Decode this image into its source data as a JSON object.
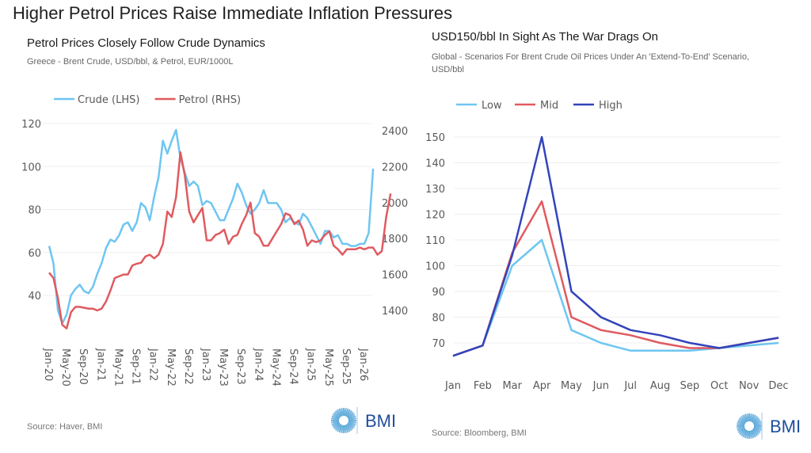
{
  "page_title": "Higher Petrol Prices Raise Immediate Inflation Pressures",
  "brand": {
    "name": "BMI",
    "color": "#1f4e9c",
    "logo_color": "#5aa9db"
  },
  "chart_data": [
    {
      "type": "line",
      "title": "Petrol Prices Closely Follow Crude Dynamics",
      "subtitle": "Greece - Brent Crude, USD/bbl, & Petrol, EUR/1000L",
      "source": "Source: Haver, BMI",
      "legend": {
        "placement": "top-left",
        "entries": [
          "Crude (LHS)",
          "Petrol (RHS)"
        ]
      },
      "x_tick_labels": [
        "Jan-20",
        "May-20",
        "Sep-20",
        "Jan-21",
        "May-21",
        "Sep-21",
        "Jan-22",
        "May-22",
        "Sep-22",
        "Jan-23",
        "May-23",
        "Sep-23",
        "Jan-24",
        "May-24",
        "Sep-24",
        "Jan-25",
        "May-25",
        "Sep-25",
        "Jan-26"
      ],
      "x_start": "Jan-20",
      "frequency": "monthly",
      "y_left": {
        "label": "Crude (LHS)",
        "ylim": [
          30,
          120
        ],
        "ticks": [
          40,
          60,
          80,
          100,
          120
        ]
      },
      "y_right": {
        "label": "Petrol (RHS)",
        "ylim": [
          1300,
          2400
        ],
        "ticks": [
          1400,
          1600,
          1800,
          2000,
          2200,
          2400
        ]
      },
      "grid": true,
      "series": [
        {
          "name": "Crude (LHS)",
          "axis": "left",
          "color": "#6ec6f1",
          "values": [
            63,
            55,
            33,
            27,
            31,
            40,
            43,
            45,
            42,
            41,
            44,
            50,
            55,
            62,
            66,
            65,
            68,
            73,
            74,
            70,
            74,
            83,
            81,
            75,
            86,
            95,
            112,
            106,
            112,
            117,
            104,
            97,
            91,
            93,
            91,
            82,
            84,
            83,
            79,
            75,
            75,
            80,
            85,
            92,
            88,
            82,
            78,
            80,
            83,
            89,
            83,
            83,
            83,
            80,
            74,
            76,
            74,
            73,
            78,
            76,
            72,
            68,
            64,
            70,
            70,
            67,
            68,
            64,
            64,
            63,
            63,
            64,
            64,
            69,
            99
          ]
        },
        {
          "name": "Petrol (RHS)",
          "axis": "right",
          "color": "#e05a5f",
          "values": [
            1610,
            1580,
            1470,
            1320,
            1300,
            1390,
            1420,
            1420,
            1415,
            1410,
            1410,
            1400,
            1410,
            1450,
            1510,
            1580,
            1590,
            1600,
            1600,
            1650,
            1660,
            1665,
            1700,
            1710,
            1690,
            1710,
            1770,
            1950,
            1920,
            2030,
            2280,
            2150,
            1950,
            1890,
            1930,
            1970,
            1790,
            1790,
            1820,
            1830,
            1850,
            1770,
            1810,
            1820,
            1880,
            1930,
            2000,
            1830,
            1810,
            1760,
            1760,
            1800,
            1840,
            1880,
            1940,
            1930,
            1880,
            1900,
            1850,
            1760,
            1790,
            1780,
            1790,
            1820,
            1840,
            1760,
            1740,
            1710,
            1740,
            1740,
            1740,
            1750,
            1740,
            1750,
            1750,
            1710,
            1730,
            1920,
            2050
          ]
        }
      ]
    },
    {
      "type": "line",
      "title": "USD150/bbl In Sight As The War Drags On",
      "subtitle": "Global - Scenarios For Brent Crude Oil Prices Under An 'Extend-To-End' Scenario, USD/bbl",
      "source": "Source: Bloomberg, BMI",
      "legend": {
        "placement": "top-left",
        "entries": [
          "Low",
          "Mid",
          "High"
        ]
      },
      "categories": [
        "Jan",
        "Feb",
        "Mar",
        "Apr",
        "May",
        "Jun",
        "Jul",
        "Aug",
        "Sep",
        "Oct",
        "Nov",
        "Dec"
      ],
      "ylim": [
        60,
        150
      ],
      "y_ticks": [
        70,
        80,
        90,
        100,
        110,
        120,
        130,
        140,
        150
      ],
      "grid": true,
      "series": [
        {
          "name": "Low",
          "color": "#6ec6f1",
          "values": [
            65,
            69,
            100,
            110,
            75,
            70,
            67,
            67,
            67,
            68,
            69,
            70
          ]
        },
        {
          "name": "Mid",
          "color": "#e05a5f",
          "values": [
            65,
            69,
            105,
            125,
            80,
            75,
            73,
            70,
            68,
            68,
            70,
            72
          ]
        },
        {
          "name": "High",
          "color": "#3344bb",
          "values": [
            65,
            69,
            104,
            150,
            90,
            80,
            75,
            73,
            70,
            68,
            70,
            72
          ]
        }
      ]
    }
  ]
}
